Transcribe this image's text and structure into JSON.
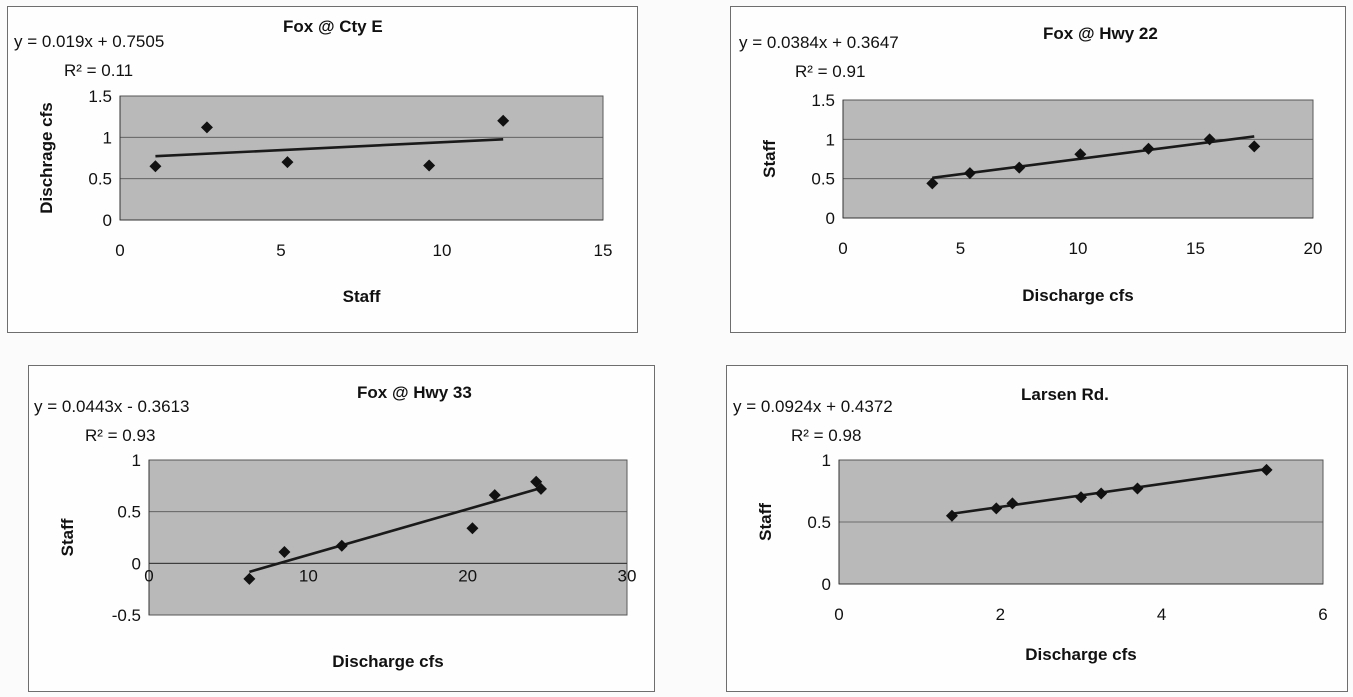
{
  "chart_data": [
    {
      "type": "scatter",
      "title": "Fox @ Cty E",
      "equation": "y = 0.019x + 0.7505",
      "r2_label": "R² = 0.11",
      "xlabel": "Staff",
      "ylabel": "Dischrage cfs",
      "xlim": [
        0,
        15
      ],
      "ylim": [
        0,
        1.5
      ],
      "xticks": [
        0,
        5,
        10,
        15
      ],
      "yticks": [
        0,
        0.5,
        1,
        1.5
      ],
      "points": [
        [
          1.1,
          0.65
        ],
        [
          2.7,
          1.12
        ],
        [
          5.2,
          0.7
        ],
        [
          9.6,
          0.66
        ],
        [
          11.9,
          1.2
        ]
      ],
      "trendline": {
        "slope": 0.019,
        "intercept": 0.7505,
        "x_range": [
          1.1,
          11.9
        ]
      },
      "grid": true
    },
    {
      "type": "scatter",
      "title": "Fox @ Hwy 22",
      "equation": "y = 0.0384x + 0.3647",
      "r2_label": "R² = 0.91",
      "xlabel": "Discharge cfs",
      "ylabel": "Staff",
      "xlim": [
        0,
        20
      ],
      "ylim": [
        0,
        1.5
      ],
      "xticks": [
        0,
        5,
        10,
        15,
        20
      ],
      "yticks": [
        0,
        0.5,
        1,
        1.5
      ],
      "points": [
        [
          3.8,
          0.44
        ],
        [
          5.4,
          0.57
        ],
        [
          7.5,
          0.64
        ],
        [
          10.1,
          0.81
        ],
        [
          13.0,
          0.88
        ],
        [
          15.6,
          1.0
        ],
        [
          17.5,
          0.91
        ]
      ],
      "trendline": {
        "slope": 0.0384,
        "intercept": 0.3647,
        "x_range": [
          3.8,
          17.5
        ]
      },
      "grid": true
    },
    {
      "type": "scatter",
      "title": "Fox @ Hwy 33",
      "equation": "y = 0.0443x - 0.3613",
      "r2_label": "R² = 0.93",
      "xlabel": "Discharge cfs",
      "ylabel": "Staff",
      "xlim": [
        0,
        30
      ],
      "ylim": [
        -0.5,
        1
      ],
      "xticks": [
        0,
        10,
        20,
        30
      ],
      "yticks": [
        -0.5,
        0,
        0.5,
        1
      ],
      "points": [
        [
          6.3,
          -0.15
        ],
        [
          8.5,
          0.11
        ],
        [
          12.1,
          0.17
        ],
        [
          20.3,
          0.34
        ],
        [
          21.7,
          0.66
        ],
        [
          24.3,
          0.79
        ],
        [
          24.6,
          0.72
        ]
      ],
      "trendline": {
        "slope": 0.0443,
        "intercept": -0.3613,
        "x_range": [
          6.3,
          24.6
        ]
      },
      "grid": true
    },
    {
      "type": "scatter",
      "title": "Larsen Rd.",
      "equation": "y = 0.0924x + 0.4372",
      "r2_label": "R² = 0.98",
      "xlabel": "Discharge cfs",
      "ylabel": "Staff",
      "xlim": [
        0,
        6
      ],
      "ylim": [
        0,
        1
      ],
      "xticks": [
        0,
        2,
        4,
        6
      ],
      "yticks": [
        0,
        0.5,
        1
      ],
      "points": [
        [
          1.4,
          0.55
        ],
        [
          1.95,
          0.61
        ],
        [
          2.15,
          0.65
        ],
        [
          3.0,
          0.7
        ],
        [
          3.25,
          0.73
        ],
        [
          3.7,
          0.77
        ],
        [
          5.3,
          0.92
        ]
      ],
      "trendline": {
        "slope": 0.0924,
        "intercept": 0.4372,
        "x_range": [
          1.4,
          5.3
        ]
      },
      "grid": true
    }
  ]
}
